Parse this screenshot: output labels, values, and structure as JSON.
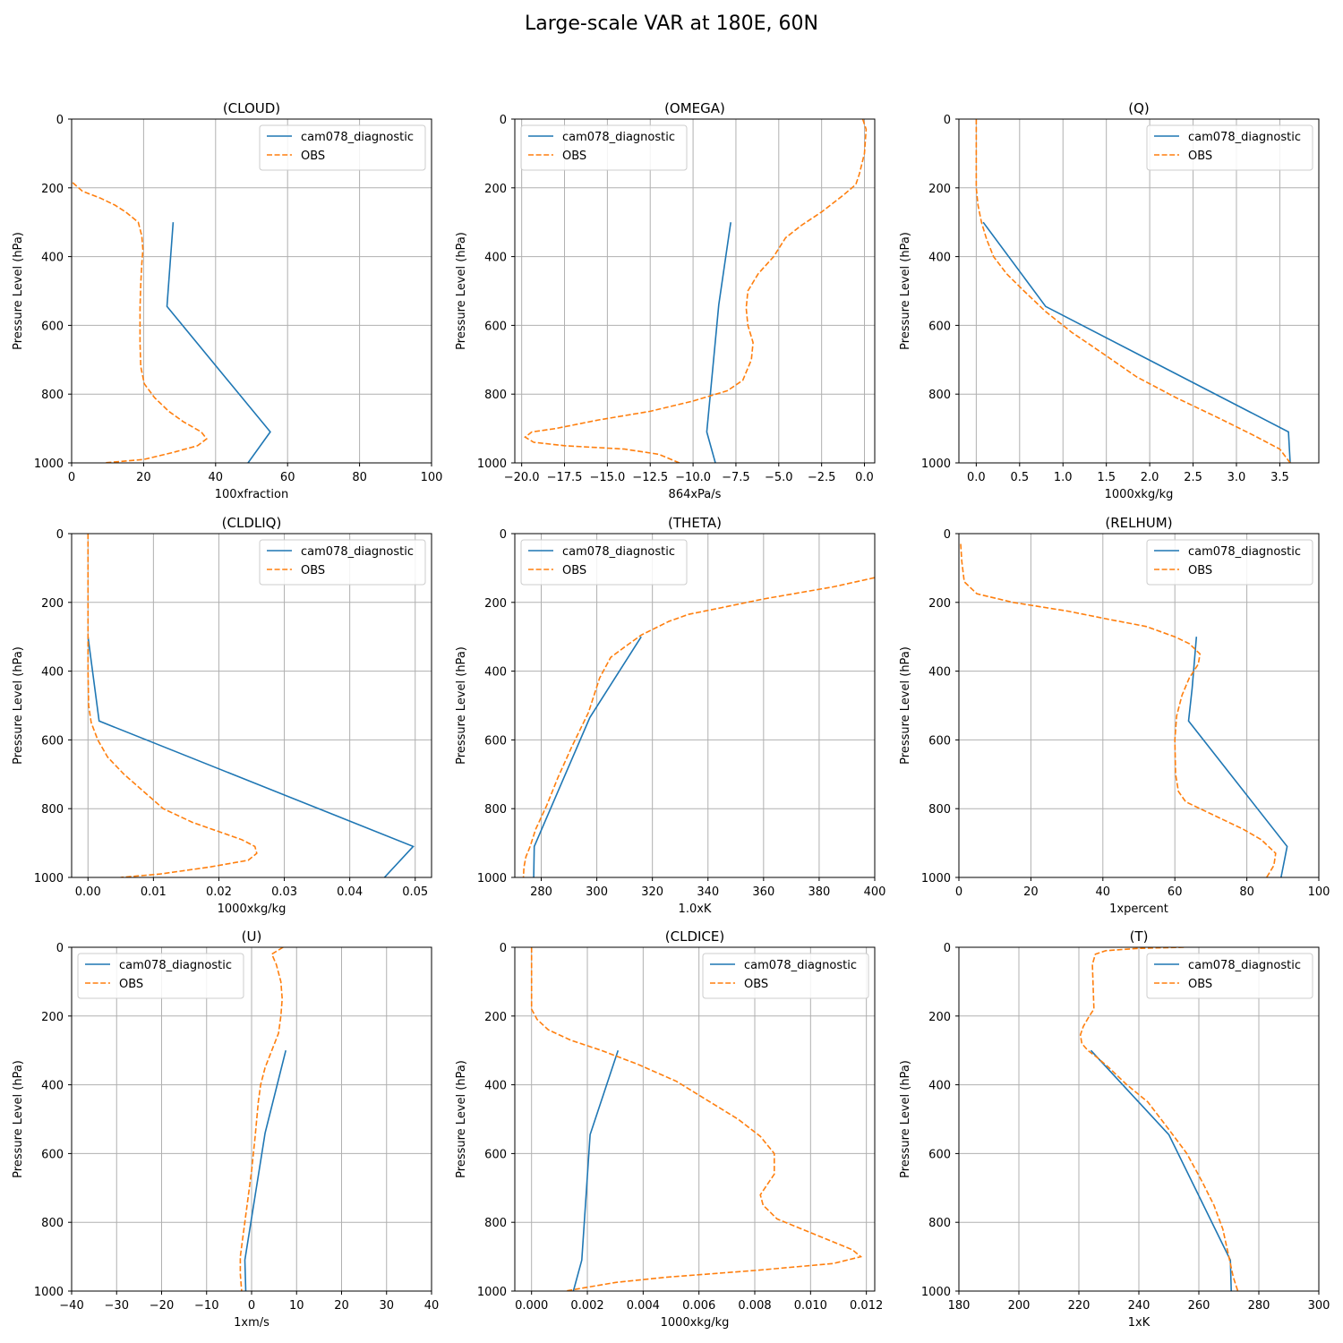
{
  "suptitle": "Large-scale VAR at 180E, 60N",
  "colors": {
    "model": "#1f77b4",
    "obs": "#ff7f0e",
    "grid": "#b0b0b0"
  },
  "chart_data": [
    {
      "type": "line",
      "title": "(CLOUD)",
      "xlabel": "100xfraction",
      "ylabel": "Pressure Level (hPa)",
      "xlim": [
        0,
        100
      ],
      "xticks": [
        0,
        20,
        40,
        60,
        80,
        100
      ],
      "xticklabels": [
        "0",
        "20",
        "40",
        "60",
        "80",
        "100"
      ],
      "ylim": [
        1000,
        0
      ],
      "yticks": [
        0,
        200,
        400,
        600,
        800,
        1000
      ],
      "legend": "upper right",
      "series": [
        {
          "name": "cam078_diagnostic",
          "style": "solid",
          "x": [
            28.2,
            26.5,
            55.2,
            49.0
          ],
          "y": [
            300,
            545,
            910,
            1000
          ]
        },
        {
          "name": "OBS",
          "style": "dashed",
          "x": [
            0.3,
            3,
            8,
            12,
            15,
            18.5,
            19.5,
            19.8,
            19.5,
            19.2,
            19.0,
            19.0,
            19.2,
            20.2,
            23,
            27,
            31,
            36,
            37.5,
            35,
            28,
            20,
            9
          ],
          "y": [
            185,
            210,
            230,
            250,
            270,
            300,
            340,
            380,
            420,
            480,
            550,
            650,
            720,
            770,
            810,
            850,
            880,
            910,
            930,
            950,
            970,
            990,
            1000
          ]
        }
      ]
    },
    {
      "type": "line",
      "title": "(OMEGA)",
      "xlabel": "864xPa/s",
      "ylabel": "Pressure Level (hPa)",
      "xlim": [
        -20.4,
        0.6
      ],
      "xticks": [
        -20,
        -17.5,
        -15,
        -12.5,
        -10,
        -7.5,
        -5,
        -2.5,
        0
      ],
      "xticklabels": [
        "−20.0",
        "−17.5",
        "−15.0",
        "−12.5",
        "−10.0",
        "−7.5",
        "−5.0",
        "−2.5",
        "0.0"
      ],
      "ylim": [
        1000,
        0
      ],
      "yticks": [
        0,
        200,
        400,
        600,
        800,
        1000
      ],
      "legend": "upper left",
      "series": [
        {
          "name": "cam078_diagnostic",
          "style": "solid",
          "x": [
            -7.8,
            -8.5,
            -9.2,
            -8.7
          ],
          "y": [
            300,
            540,
            910,
            1000
          ]
        },
        {
          "name": "OBS",
          "style": "dashed",
          "x": [
            -0.1,
            0.1,
            0,
            -0.3,
            -0.5,
            -1.2,
            -2.5,
            -3.7,
            -4.6,
            -5.3,
            -6.2,
            -6.8,
            -6.9,
            -6.8,
            -6.5,
            -6.6,
            -7.1,
            -8.0,
            -10.0,
            -12.5,
            -15.5,
            -18,
            -19.4,
            -19.8,
            -19.3,
            -17.5,
            -14,
            -12,
            -10.8
          ],
          "y": [
            0,
            30,
            100,
            160,
            190,
            220,
            270,
            310,
            345,
            400,
            450,
            500,
            550,
            600,
            650,
            700,
            760,
            790,
            820,
            850,
            875,
            900,
            910,
            925,
            940,
            950,
            960,
            975,
            1000
          ]
        }
      ]
    },
    {
      "type": "line",
      "title": "(Q)",
      "xlabel": "1000xkg/kg",
      "ylabel": "Pressure Level (hPa)",
      "xlim": [
        -0.2,
        3.95
      ],
      "xticks": [
        0,
        0.5,
        1,
        1.5,
        2,
        2.5,
        3,
        3.5
      ],
      "xticklabels": [
        "0.0",
        "0.5",
        "1.0",
        "1.5",
        "2.0",
        "2.5",
        "3.0",
        "3.5"
      ],
      "ylim": [
        1000,
        0
      ],
      "yticks": [
        0,
        200,
        400,
        600,
        800,
        1000
      ],
      "legend": "upper right",
      "series": [
        {
          "name": "cam078_diagnostic",
          "style": "solid",
          "x": [
            0.08,
            0.8,
            3.6,
            3.62
          ],
          "y": [
            300,
            545,
            910,
            1000
          ]
        },
        {
          "name": "OBS",
          "style": "dashed",
          "x": [
            0,
            0,
            0.0,
            0.02,
            0.06,
            0.12,
            0.2,
            0.35,
            0.55,
            0.8,
            1.1,
            1.45,
            1.85,
            2.3,
            2.8,
            3.2,
            3.5,
            3.62
          ],
          "y": [
            0,
            100,
            200,
            250,
            300,
            350,
            400,
            450,
            500,
            560,
            620,
            680,
            750,
            810,
            870,
            920,
            960,
            1000
          ]
        }
      ]
    },
    {
      "type": "line",
      "title": "(CLDLIQ)",
      "xlabel": "1000xkg/kg",
      "ylabel": "Pressure Level (hPa)",
      "xlim": [
        -0.0025,
        0.0525
      ],
      "xticks": [
        0,
        0.01,
        0.02,
        0.03,
        0.04,
        0.05
      ],
      "xticklabels": [
        "0.00",
        "0.01",
        "0.02",
        "0.03",
        "0.04",
        "0.05"
      ],
      "ylim": [
        1000,
        0
      ],
      "yticks": [
        0,
        200,
        400,
        600,
        800,
        1000
      ],
      "legend": "upper right",
      "series": [
        {
          "name": "cam078_diagnostic",
          "style": "solid",
          "x": [
            0,
            0.0017,
            0.0497,
            0.0453
          ],
          "y": [
            300,
            545,
            910,
            1000
          ]
        },
        {
          "name": "OBS",
          "style": "dashed",
          "x": [
            0,
            0,
            0,
            0.0001,
            0.0005,
            0.0015,
            0.003,
            0.0055,
            0.0085,
            0.0115,
            0.016,
            0.0205,
            0.0235,
            0.0255,
            0.0258,
            0.0245,
            0.0185,
            0.011,
            0.005
          ],
          "y": [
            0,
            200,
            400,
            500,
            550,
            600,
            650,
            700,
            750,
            800,
            840,
            870,
            890,
            910,
            930,
            950,
            970,
            990,
            1000
          ]
        }
      ]
    },
    {
      "type": "line",
      "title": "(THETA)",
      "xlabel": "1.0xK",
      "ylabel": "Pressure Level (hPa)",
      "xlim": [
        270.5,
        400
      ],
      "xticks": [
        280,
        300,
        320,
        340,
        360,
        380,
        400
      ],
      "xticklabels": [
        "280",
        "300",
        "320",
        "340",
        "360",
        "380",
        "400"
      ],
      "ylim": [
        1000,
        0
      ],
      "yticks": [
        0,
        200,
        400,
        600,
        800,
        1000
      ],
      "legend": "upper left",
      "series": [
        {
          "name": "cam078_diagnostic",
          "style": "solid",
          "x": [
            316,
            297.5,
            277.5,
            277.3
          ],
          "y": [
            300,
            535,
            910,
            1000
          ]
        },
        {
          "name": "OBS",
          "style": "dashed",
          "x": [
            400,
            385,
            360,
            345,
            333,
            326,
            316,
            310,
            305,
            301,
            297,
            291,
            286,
            282,
            278,
            276,
            274.5,
            273.8,
            273.6
          ],
          "y": [
            128,
            155,
            190,
            215,
            235,
            255,
            295,
            330,
            360,
            420,
            520,
            620,
            710,
            790,
            860,
            910,
            940,
            970,
            1000
          ]
        }
      ]
    },
    {
      "type": "line",
      "title": "(RELHUM)",
      "xlabel": "1xpercent",
      "ylabel": "Pressure Level (hPa)",
      "xlim": [
        0,
        100
      ],
      "xticks": [
        0,
        20,
        40,
        60,
        80,
        100
      ],
      "xticklabels": [
        "0",
        "20",
        "40",
        "60",
        "80",
        "100"
      ],
      "ylim": [
        1000,
        0
      ],
      "yticks": [
        0,
        200,
        400,
        600,
        800,
        1000
      ],
      "legend": "upper right",
      "series": [
        {
          "name": "cam078_diagnostic",
          "style": "solid",
          "x": [
            66,
            64.8,
            63.8,
            91.2,
            89.5
          ],
          "y": [
            300,
            450,
            545,
            910,
            1000
          ]
        },
        {
          "name": "OBS",
          "style": "dashed",
          "x": [
            0.5,
            0.8,
            1.5,
            5,
            15,
            30,
            42,
            52,
            60,
            64,
            67,
            66.5,
            64,
            62,
            60.5,
            60,
            60.2,
            61,
            63,
            67,
            73,
            79,
            84,
            88,
            87.5,
            85.5
          ],
          "y": [
            30,
            80,
            140,
            175,
            200,
            225,
            250,
            270,
            300,
            320,
            350,
            380,
            420,
            470,
            530,
            600,
            700,
            750,
            780,
            800,
            830,
            860,
            890,
            930,
            965,
            1000
          ]
        }
      ]
    },
    {
      "type": "line",
      "title": "(U)",
      "xlabel": "1xm/s",
      "ylabel": "Pressure Level (hPa)",
      "xlim": [
        -40,
        40
      ],
      "xticks": [
        -40,
        -30,
        -20,
        -10,
        0,
        10,
        20,
        30,
        40
      ],
      "xticklabels": [
        "−40",
        "−30",
        "−20",
        "−10",
        "0",
        "10",
        "20",
        "30",
        "40"
      ],
      "ylim": [
        1000,
        0
      ],
      "yticks": [
        0,
        200,
        400,
        600,
        800,
        1000
      ],
      "legend": "upper left",
      "series": [
        {
          "name": "cam078_diagnostic",
          "style": "solid",
          "x": [
            7.6,
            3,
            -1.5,
            -1.3
          ],
          "y": [
            300,
            540,
            910,
            1000
          ]
        },
        {
          "name": "OBS",
          "style": "dashed",
          "x": [
            7,
            4.5,
            5.5,
            6.5,
            6.8,
            6.5,
            6,
            4.5,
            3,
            2,
            1.5,
            0.8,
            0,
            -1,
            -2,
            -2.5,
            -2.5,
            -2.2
          ],
          "y": [
            0,
            20,
            50,
            100,
            150,
            200,
            250,
            300,
            350,
            400,
            450,
            550,
            650,
            750,
            850,
            900,
            950,
            1000
          ]
        }
      ]
    },
    {
      "type": "line",
      "title": "(CLDICE)",
      "xlabel": "1000xkg/kg",
      "ylabel": "Pressure Level (hPa)",
      "xlim": [
        -0.0006,
        0.0123
      ],
      "xticks": [
        0,
        0.002,
        0.004,
        0.006,
        0.008,
        0.01,
        0.012
      ],
      "xticklabels": [
        "0.000",
        "0.002",
        "0.004",
        "0.006",
        "0.008",
        "0.010",
        "0.012"
      ],
      "ylim": [
        1000,
        0
      ],
      "yticks": [
        0,
        200,
        400,
        600,
        800,
        1000
      ],
      "legend": "upper right",
      "series": [
        {
          "name": "cam078_diagnostic",
          "style": "solid",
          "x": [
            0.0031,
            0.0021,
            0.0018,
            0.0015
          ],
          "y": [
            300,
            545,
            910,
            1000
          ]
        },
        {
          "name": "OBS",
          "style": "dashed",
          "x": [
            0,
            0,
            0,
            0.0002,
            0.0006,
            0.0014,
            0.0025,
            0.0038,
            0.0052,
            0.0064,
            0.0074,
            0.0082,
            0.0087,
            0.0087,
            0.0082,
            0.0083,
            0.0088,
            0.01,
            0.0115,
            0.0118,
            0.0108,
            0.008,
            0.0048,
            0.003,
            0.0012
          ],
          "y": [
            0,
            100,
            180,
            210,
            240,
            270,
            300,
            340,
            390,
            450,
            500,
            550,
            600,
            660,
            720,
            750,
            790,
            830,
            880,
            900,
            920,
            940,
            960,
            975,
            1000
          ]
        }
      ]
    },
    {
      "type": "line",
      "title": "(T)",
      "xlabel": "1xK",
      "ylabel": "Pressure Level (hPa)",
      "xlim": [
        180,
        300
      ],
      "xticks": [
        180,
        200,
        220,
        240,
        260,
        280,
        300
      ],
      "xticklabels": [
        "180",
        "200",
        "220",
        "240",
        "260",
        "280",
        "300"
      ],
      "ylim": [
        1000,
        0
      ],
      "yticks": [
        0,
        200,
        400,
        600,
        800,
        1000
      ],
      "legend": "upper right",
      "series": [
        {
          "name": "cam078_diagnostic",
          "style": "solid",
          "x": [
            224,
            250,
            270.5,
            270.8
          ],
          "y": [
            300,
            545,
            910,
            1000
          ]
        },
        {
          "name": "OBS",
          "style": "dashed",
          "x": [
            255,
            240,
            229,
            225.5,
            224.5,
            225,
            223.5,
            221.5,
            220.5,
            221,
            223,
            226,
            230,
            236,
            243,
            250,
            256,
            261,
            265,
            268,
            270,
            271.5,
            273
          ],
          "y": [
            0,
            3,
            10,
            20,
            50,
            180,
            200,
            230,
            255,
            280,
            300,
            320,
            350,
            400,
            450,
            530,
            600,
            680,
            750,
            820,
            900,
            960,
            1000
          ]
        }
      ]
    }
  ]
}
